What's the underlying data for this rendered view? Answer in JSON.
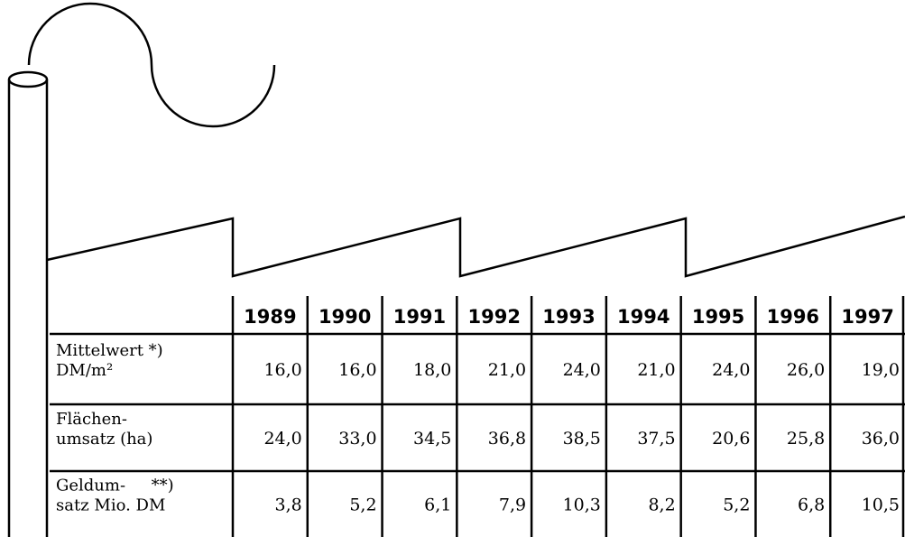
{
  "table": {
    "header": [
      "1989",
      "1990",
      "1991",
      "1992",
      "1993",
      "1994",
      "1995",
      "1996",
      "1997"
    ],
    "rows": [
      {
        "label": [
          "Mittelwert *)",
          "DM/m²"
        ],
        "cells": [
          "16,0",
          "16,0",
          "18,0",
          "21,0",
          "24,0",
          "21,0",
          "24,0",
          "26,0",
          "19,0"
        ]
      },
      {
        "label": [
          "Flächen-",
          "umsatz (ha)"
        ],
        "cells": [
          "24,0",
          "33,0",
          "34,5",
          "36,8",
          "38,5",
          "37,5",
          "20,6",
          "25,8",
          "36,0"
        ]
      },
      {
        "label": [
          "Geldum-     **)",
          "satz Mio. DM"
        ],
        "cells": [
          "3,8",
          "5,2",
          "6,1",
          "7,9",
          "10,3",
          "8,2",
          "5,2",
          "6,8",
          "10,5"
        ]
      }
    ]
  }
}
